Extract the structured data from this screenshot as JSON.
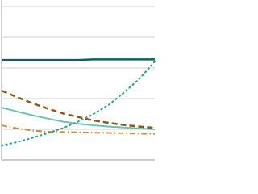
{
  "chart_data": {
    "type": "line",
    "categories": [
      null,
      null,
      null,
      null,
      null,
      null,
      null,
      null,
      null,
      null,
      null
    ],
    "ylim": [
      0,
      5
    ],
    "yticks": [
      0,
      1,
      2,
      3,
      4,
      5
    ],
    "grid": true,
    "series": [
      {
        "color": "#00665e",
        "dash": "solid",
        "width": 2.5,
        "values": [
          3.26,
          3.26,
          3.26,
          3.26,
          3.26,
          3.26,
          3.28,
          3.28,
          3.28,
          3.28,
          3.28
        ]
      },
      {
        "color": "#6cc3b5",
        "dash": "solid",
        "width": 2,
        "values": [
          1.71,
          1.58,
          1.46,
          1.35,
          1.25,
          1.18,
          1.13,
          1.09,
          1.06,
          1.03,
          1.0
        ]
      },
      {
        "color": "#8c5a1e",
        "dash": "dashed",
        "width": 2.5,
        "values": [
          2.26,
          2.05,
          1.85,
          1.68,
          1.52,
          1.4,
          1.29,
          1.21,
          1.14,
          1.09,
          1.05
        ]
      },
      {
        "color": "#d08a3a",
        "dash": "dashdot",
        "width": 2,
        "values": [
          1.13,
          1.03,
          0.96,
          0.92,
          0.91,
          0.9,
          0.89,
          0.88,
          0.87,
          0.86,
          0.85
        ]
      },
      {
        "color": "#2a9d8f",
        "dash": "dotted",
        "width": 2,
        "values": [
          0.47,
          0.58,
          0.72,
          0.87,
          1.04,
          1.25,
          1.5,
          1.8,
          2.2,
          2.65,
          3.21
        ]
      }
    ]
  }
}
